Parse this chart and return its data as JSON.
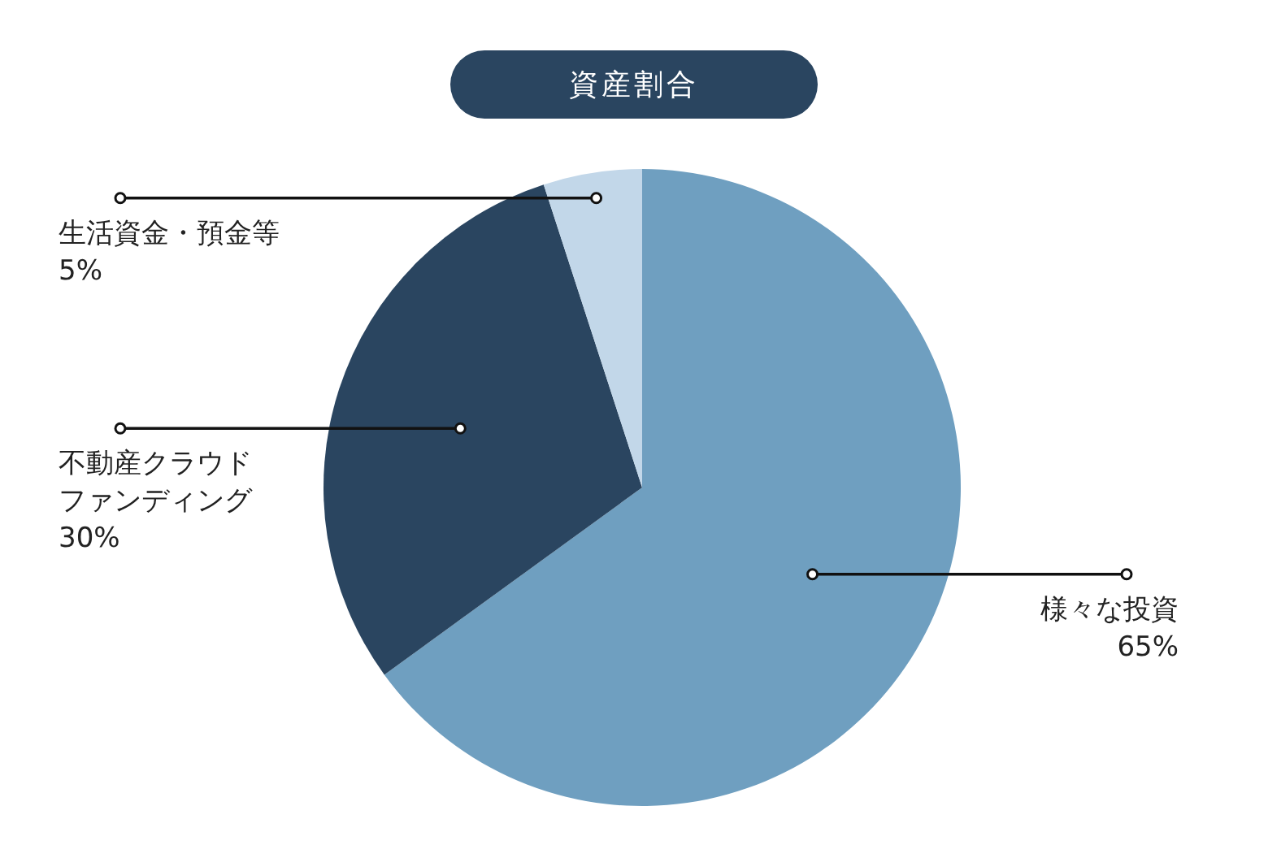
{
  "chart_data": {
    "type": "pie",
    "title": "資産割合",
    "categories": [
      "様々な投資",
      "不動産クラウドファンディング",
      "生活資金・預金等"
    ],
    "values": [
      65,
      30,
      5
    ],
    "colors": [
      "#6f9fc0",
      "#2a4560",
      "#c2d7e9"
    ],
    "value_labels": [
      "65%",
      "30%",
      "5%"
    ],
    "legend": false
  }
}
